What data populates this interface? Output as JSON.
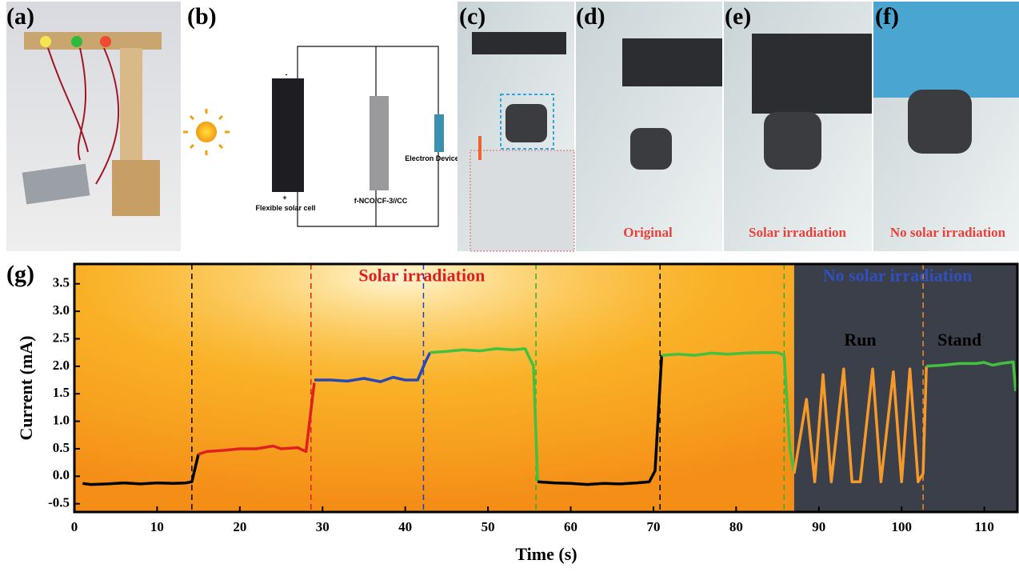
{
  "panels": {
    "labels": [
      "(a)",
      "(b)",
      "(c)",
      "(d)",
      "(e)",
      "(f)",
      "(g)"
    ],
    "circuit": {
      "minus": "-",
      "plus": "+",
      "solar_cell": "Flexible solar cell",
      "capacitor": "f-NCO/CF-3//CC",
      "device": "Electron Device"
    },
    "captions": [
      "Original",
      "Solar irradiation",
      "No solar irradiation"
    ]
  },
  "chart_data": {
    "type": "line",
    "xlabel": "Time (s)",
    "ylabel": "Current (mA)",
    "xlim": [
      0,
      114
    ],
    "ylim": [
      -0.65,
      3.86
    ],
    "xticks": [
      0,
      10,
      20,
      30,
      40,
      50,
      60,
      70,
      80,
      90,
      100,
      110
    ],
    "yticks": [
      -0.5,
      {
        "value": 0,
        "label": "0.0"
      },
      0.5,
      {
        "value": 1,
        "label": "1.0"
      },
      1.5,
      {
        "value": 2,
        "label": "2.0"
      },
      2.5,
      {
        "value": 3,
        "label": "3.0"
      },
      3.5
    ],
    "regions": [
      {
        "xlim": [
          0,
          87
        ],
        "color": "#f7a21b"
      },
      {
        "xlim": [
          87,
          114
        ],
        "color": "#3b3f4a"
      }
    ],
    "vlines": [
      {
        "x": 14.2,
        "color": "#000000"
      },
      {
        "x": 28.6,
        "color": "#e02020"
      },
      {
        "x": 42.2,
        "color": "#2040c0"
      },
      {
        "x": 55.8,
        "color": "#30b030"
      },
      {
        "x": 70.8,
        "color": "#000000"
      },
      {
        "x": 85.8,
        "color": "#30b030"
      },
      {
        "x": 102.6,
        "color": "#f09020"
      }
    ],
    "annotations": [
      {
        "text": "Solar irradiation",
        "x": 42,
        "y": 3.62,
        "color": "#e02020"
      },
      {
        "text": "No solar irradiation",
        "x": 99.5,
        "y": 3.62,
        "color": "#3050c0"
      },
      {
        "text": "Run",
        "x": 95,
        "y": 2.45,
        "color": "#000000"
      },
      {
        "text": "Stand",
        "x": 107,
        "y": 2.45,
        "color": "#000000"
      }
    ],
    "series": [
      {
        "color": "#000000",
        "x": [
          1,
          2,
          4,
          6,
          8,
          10,
          12,
          13.5,
          14.2,
          15
        ],
        "values": [
          -0.13,
          -0.15,
          -0.14,
          -0.12,
          -0.14,
          -0.12,
          -0.13,
          -0.12,
          -0.1,
          0.4
        ]
      },
      {
        "color": "#e02020",
        "x": [
          15,
          16,
          18,
          20,
          22,
          24,
          25,
          27,
          28,
          29
        ],
        "values": [
          0.4,
          0.45,
          0.47,
          0.5,
          0.5,
          0.55,
          0.5,
          0.52,
          0.45,
          1.7
        ]
      },
      {
        "color": "#2848b8",
        "x": [
          29,
          31,
          33,
          35,
          37,
          38.5,
          40,
          41.5,
          42.5,
          43
        ],
        "values": [
          1.75,
          1.75,
          1.73,
          1.78,
          1.72,
          1.8,
          1.75,
          1.75,
          2.1,
          2.25
        ]
      },
      {
        "color": "#44c040",
        "x": [
          43,
          45,
          47,
          49,
          51,
          53,
          54.5,
          55.5,
          56
        ],
        "values": [
          2.25,
          2.27,
          2.3,
          2.28,
          2.32,
          2.3,
          2.32,
          2.0,
          -0.1
        ]
      },
      {
        "color": "#000000",
        "x": [
          56,
          58,
          60,
          62,
          64,
          66,
          68,
          69.5,
          70.2,
          71
        ],
        "values": [
          -0.1,
          -0.12,
          -0.13,
          -0.15,
          -0.13,
          -0.14,
          -0.12,
          -0.1,
          0.1,
          2.2
        ]
      },
      {
        "color": "#44c040",
        "x": [
          71,
          73,
          75,
          77,
          79,
          81,
          83,
          85,
          85.8,
          86.5,
          87
        ],
        "values": [
          2.2,
          2.22,
          2.2,
          2.24,
          2.22,
          2.24,
          2.25,
          2.25,
          2.2,
          0.5,
          0.05
        ]
      },
      {
        "color": "#f59a2a",
        "x": [
          87,
          88.5,
          89.5,
          90.5,
          91.5,
          93,
          94,
          95,
          96.5,
          97.5,
          99,
          100,
          101,
          102,
          102.6,
          103
        ],
        "values": [
          0.05,
          1.4,
          -0.1,
          1.85,
          -0.1,
          1.95,
          -0.1,
          -0.1,
          1.95,
          -0.1,
          1.9,
          -0.1,
          1.95,
          -0.1,
          0.05,
          2.0
        ]
      },
      {
        "color": "#44c040",
        "x": [
          103,
          105,
          107,
          109,
          110,
          111,
          112,
          113.5,
          113.8
        ],
        "values": [
          2.0,
          2.02,
          2.05,
          2.05,
          2.07,
          2.02,
          2.05,
          2.08,
          1.55
        ]
      }
    ]
  }
}
